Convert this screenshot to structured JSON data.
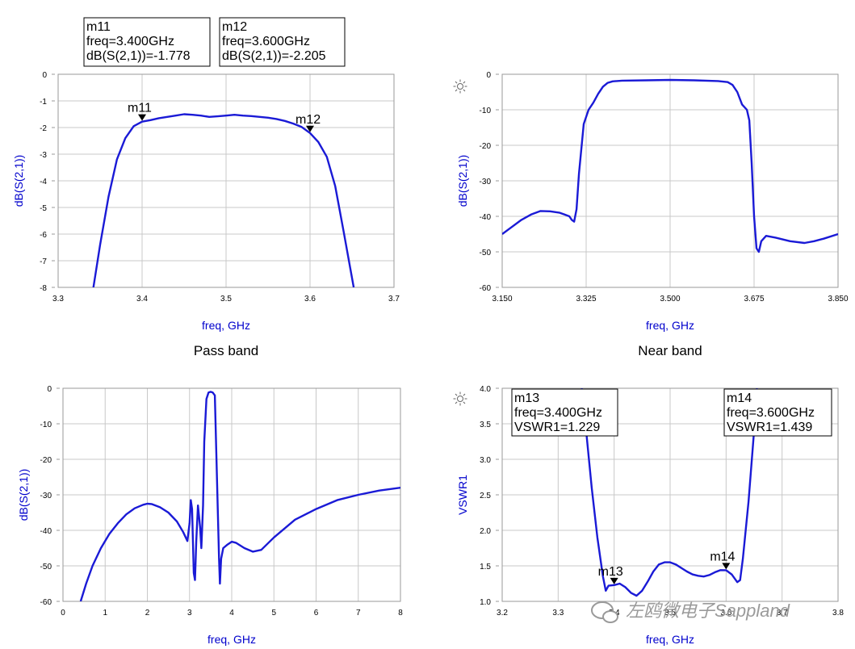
{
  "watermark": "左鸥微电子Sappland",
  "chart_data": [
    {
      "type": "line",
      "title": "Pass band",
      "xlabel": "freq, GHz",
      "ylabel": "dB(S(2,1))",
      "xlim": [
        3.3,
        3.7
      ],
      "ylim": [
        -8,
        0
      ],
      "xticks": [
        3.3,
        3.4,
        3.5,
        3.6,
        3.7
      ],
      "xtick_labels": [
        "3.3",
        "3.4",
        "3.5",
        "3.6",
        "3.7"
      ],
      "yticks": [
        0,
        -1,
        -2,
        -3,
        -4,
        -5,
        -6,
        -7,
        -8
      ],
      "ytick_labels": [
        "0",
        "-1",
        "-2",
        "-3",
        "-4",
        "-5",
        "-6",
        "-7",
        "-8"
      ],
      "grid": true,
      "series": [
        {
          "name": "dB(S(2,1))",
          "x": [
            3.342,
            3.35,
            3.36,
            3.37,
            3.38,
            3.39,
            3.4,
            3.41,
            3.42,
            3.43,
            3.44,
            3.45,
            3.46,
            3.47,
            3.48,
            3.49,
            3.5,
            3.51,
            3.52,
            3.53,
            3.54,
            3.55,
            3.56,
            3.57,
            3.58,
            3.59,
            3.6,
            3.61,
            3.62,
            3.63,
            3.64,
            3.652
          ],
          "y": [
            -8.0,
            -6.4,
            -4.6,
            -3.2,
            -2.4,
            -1.95,
            -1.778,
            -1.72,
            -1.65,
            -1.6,
            -1.55,
            -1.5,
            -1.52,
            -1.55,
            -1.6,
            -1.58,
            -1.55,
            -1.52,
            -1.55,
            -1.57,
            -1.6,
            -1.63,
            -1.68,
            -1.75,
            -1.85,
            -1.98,
            -2.205,
            -2.55,
            -3.1,
            -4.2,
            -5.9,
            -8.0
          ]
        }
      ],
      "markers": [
        {
          "name": "m11",
          "label_line1": "m11",
          "label_line2": "freq=3.400GHz",
          "label_line3": "dB(S(2,1))=-1.778",
          "x": 3.4,
          "y": -1.778
        },
        {
          "name": "m12",
          "label_line1": "m12",
          "label_line2": "freq=3.600GHz",
          "label_line3": "dB(S(2,1))=-2.205",
          "x": 3.6,
          "y": -2.205
        }
      ]
    },
    {
      "type": "line",
      "title": "Near band",
      "xlabel": "freq, GHz",
      "ylabel": "dB(S(2,1))",
      "xlim": [
        3.15,
        3.85
      ],
      "ylim": [
        -60,
        0
      ],
      "xticks": [
        3.15,
        3.325,
        3.5,
        3.675,
        3.85
      ],
      "xtick_labels": [
        "3.150",
        "3.325",
        "3.500",
        "3.675",
        "3.850"
      ],
      "yticks": [
        0,
        -10,
        -20,
        -30,
        -40,
        -50,
        -60
      ],
      "ytick_labels": [
        "0",
        "-10",
        "-20",
        "-30",
        "-40",
        "-50",
        "-60"
      ],
      "grid": true,
      "series": [
        {
          "name": "dB(S(2,1))",
          "x": [
            3.15,
            3.17,
            3.19,
            3.21,
            3.23,
            3.25,
            3.27,
            3.28,
            3.29,
            3.295,
            3.3,
            3.305,
            3.31,
            3.32,
            3.33,
            3.34,
            3.35,
            3.36,
            3.37,
            3.38,
            3.4,
            3.45,
            3.5,
            3.55,
            3.6,
            3.62,
            3.63,
            3.64,
            3.65,
            3.66,
            3.665,
            3.67,
            3.675,
            3.68,
            3.685,
            3.69,
            3.7,
            3.72,
            3.75,
            3.78,
            3.8,
            3.82,
            3.85
          ],
          "y": [
            -45,
            -43,
            -41,
            -39.5,
            -38.5,
            -38.6,
            -39,
            -39.5,
            -40,
            -41,
            -41.5,
            -38,
            -28,
            -14,
            -10,
            -8,
            -5.5,
            -3.5,
            -2.4,
            -2,
            -1.8,
            -1.7,
            -1.6,
            -1.7,
            -1.9,
            -2.2,
            -3,
            -5,
            -8.5,
            -10,
            -13,
            -25,
            -40,
            -49,
            -50,
            -47,
            -45.5,
            -46,
            -47,
            -47.5,
            -47,
            -46.3,
            -45
          ]
        }
      ],
      "markers": []
    },
    {
      "type": "line",
      "title": "",
      "xlabel": "freq, GHz",
      "ylabel": "dB(S(2,1))",
      "xlim": [
        0,
        8
      ],
      "ylim": [
        -60,
        0
      ],
      "xticks": [
        0,
        1,
        2,
        3,
        4,
        5,
        6,
        7,
        8
      ],
      "xtick_labels": [
        "0",
        "1",
        "2",
        "3",
        "4",
        "5",
        "6",
        "7",
        "8"
      ],
      "yticks": [
        0,
        -10,
        -20,
        -30,
        -40,
        -50,
        -60
      ],
      "ytick_labels": [
        "0",
        "-10",
        "-20",
        "-30",
        "-40",
        "-50",
        "-60"
      ],
      "grid": true,
      "series": [
        {
          "name": "dB(S(2,1))",
          "x": [
            0.42,
            0.55,
            0.7,
            0.9,
            1.1,
            1.3,
            1.5,
            1.7,
            1.9,
            2.0,
            2.1,
            2.3,
            2.5,
            2.7,
            2.85,
            2.95,
            3.0,
            3.03,
            3.06,
            3.1,
            3.13,
            3.16,
            3.2,
            3.25,
            3.28,
            3.32,
            3.35,
            3.4,
            3.45,
            3.5,
            3.55,
            3.6,
            3.65,
            3.7,
            3.72,
            3.75,
            3.8,
            3.9,
            4.0,
            4.1,
            4.3,
            4.5,
            4.7,
            5.0,
            5.5,
            6.0,
            6.5,
            7.0,
            7.5,
            8.0
          ],
          "y": [
            -60,
            -55,
            -50,
            -45,
            -41,
            -38,
            -35.5,
            -33.8,
            -32.8,
            -32.5,
            -32.6,
            -33.5,
            -35,
            -37.5,
            -40.5,
            -43,
            -38,
            -31.5,
            -34,
            -52,
            -54,
            -43,
            -33,
            -39,
            -45,
            -33,
            -15,
            -3,
            -1.2,
            -1,
            -1.2,
            -2,
            -25,
            -48,
            -55,
            -48,
            -45,
            -44,
            -43.2,
            -43.5,
            -45,
            -46,
            -45.5,
            -42,
            -37,
            -34,
            -31.5,
            -30,
            -28.8,
            -28
          ]
        }
      ],
      "markers": []
    },
    {
      "type": "line",
      "title": "",
      "xlabel": "freq, GHz",
      "ylabel": "VSWR1",
      "xlim": [
        3.2,
        3.8
      ],
      "ylim": [
        1.0,
        4.0
      ],
      "xticks": [
        3.2,
        3.3,
        3.4,
        3.5,
        3.6,
        3.7,
        3.8
      ],
      "xtick_labels": [
        "3.2",
        "3.3",
        "3.4",
        "3.5",
        "3.6",
        "3.7",
        "3.8"
      ],
      "yticks": [
        1.0,
        1.5,
        2.0,
        2.5,
        3.0,
        3.5,
        4.0
      ],
      "ytick_labels": [
        "1.0",
        "1.5",
        "2.0",
        "2.5",
        "3.0",
        "3.5",
        "4.0"
      ],
      "grid": true,
      "series": [
        {
          "name": "VSWR1",
          "x": [
            3.342,
            3.35,
            3.36,
            3.37,
            3.38,
            3.385,
            3.39,
            3.4,
            3.41,
            3.42,
            3.43,
            3.44,
            3.45,
            3.46,
            3.47,
            3.48,
            3.49,
            3.5,
            3.51,
            3.52,
            3.53,
            3.54,
            3.55,
            3.56,
            3.57,
            3.58,
            3.59,
            3.6,
            3.61,
            3.62,
            3.625,
            3.63,
            3.64,
            3.65,
            3.655
          ],
          "y": [
            4.0,
            3.4,
            2.6,
            1.9,
            1.35,
            1.15,
            1.22,
            1.229,
            1.25,
            1.2,
            1.12,
            1.08,
            1.15,
            1.28,
            1.42,
            1.52,
            1.55,
            1.55,
            1.52,
            1.47,
            1.42,
            1.38,
            1.36,
            1.35,
            1.37,
            1.41,
            1.44,
            1.439,
            1.38,
            1.27,
            1.3,
            1.6,
            2.4,
            3.4,
            4.0
          ]
        }
      ],
      "markers": [
        {
          "name": "m13",
          "label_line1": "m13",
          "label_line2": "freq=3.400GHz",
          "label_line3": "VSWR1=1.229",
          "x": 3.4,
          "y": 1.229
        },
        {
          "name": "m14",
          "label_line1": "m14",
          "label_line2": "freq=3.600GHz",
          "label_line3": "VSWR1=1.439",
          "x": 3.6,
          "y": 1.439
        }
      ]
    }
  ]
}
